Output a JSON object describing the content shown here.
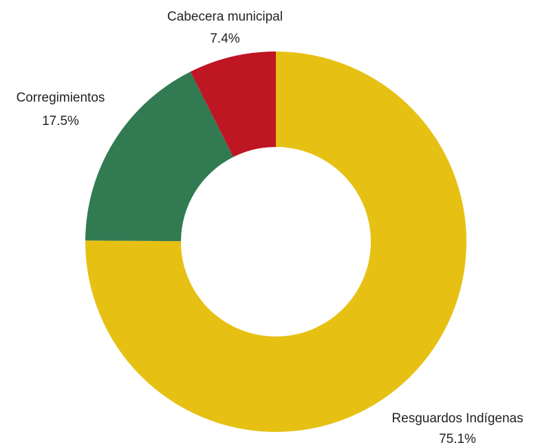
{
  "chart_data": {
    "type": "donut",
    "categories": [
      "Resguardos Indígenas",
      "Corregimientos",
      "Cabecera municipal"
    ],
    "values": [
      75.1,
      17.5,
      7.4
    ],
    "value_labels": [
      "75.1%",
      "17.5%",
      "7.4%"
    ],
    "colors": [
      "#e6c114",
      "#327b52",
      "#be1622"
    ]
  }
}
